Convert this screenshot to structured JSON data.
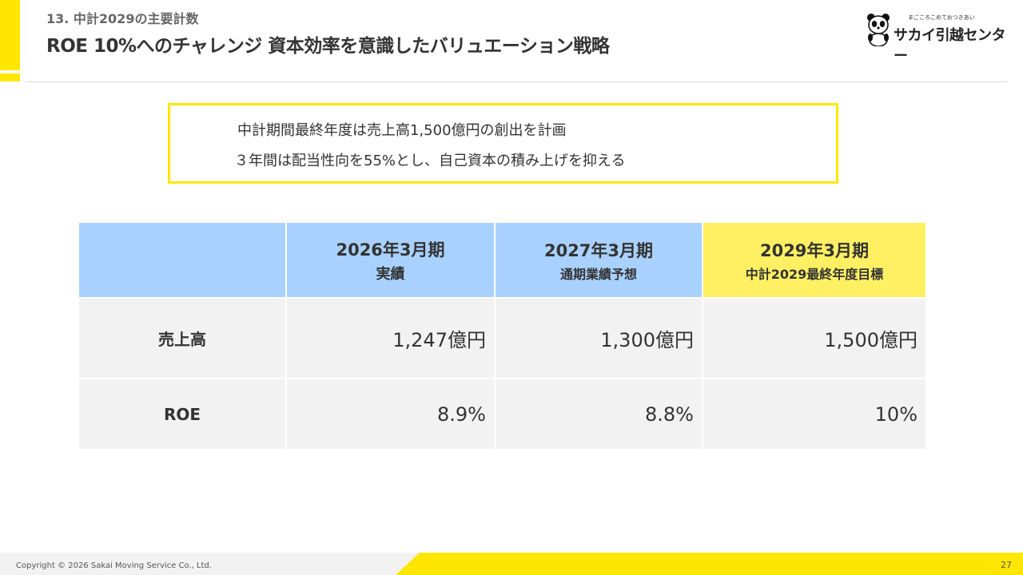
{
  "header": {
    "section_label": "13. 中計2029の主要計数",
    "title": "ROE 10%へのチャレンジ 資本効率を意識したバリュエーション戦略"
  },
  "logo": {
    "tagline": "まごころこめておつきあい",
    "brand": "サカイ引越センター"
  },
  "callout": {
    "line1": "中計期間最終年度は売上高1,500億円の創出を計画",
    "line2": "３年間は配当性向を55%とし、自己資本の積み上げを抑える"
  },
  "table": {
    "columns": [
      {
        "year": "2026年3月期",
        "sub": "実績"
      },
      {
        "year": "2027年3月期",
        "sub": "通期業績予想"
      },
      {
        "year": "2029年3月期",
        "sub": "中計2029最終年度目標"
      }
    ],
    "rows": [
      {
        "label": "売上高",
        "values": [
          "1,247億円",
          "1,300億円",
          "1,500億円"
        ]
      },
      {
        "label": "ROE",
        "values": [
          "8.9%",
          "8.8%",
          "10%"
        ]
      }
    ]
  },
  "footer": {
    "copyright": "Copyright © 2026 Sakai Moving Service Co., Ltd.",
    "page_number": "27"
  },
  "colors": {
    "accent_yellow": "#FFE600",
    "header_blue": "#A9D1FF",
    "target_yellow": "#FFF063",
    "cell_gray": "#F2F2F2"
  }
}
